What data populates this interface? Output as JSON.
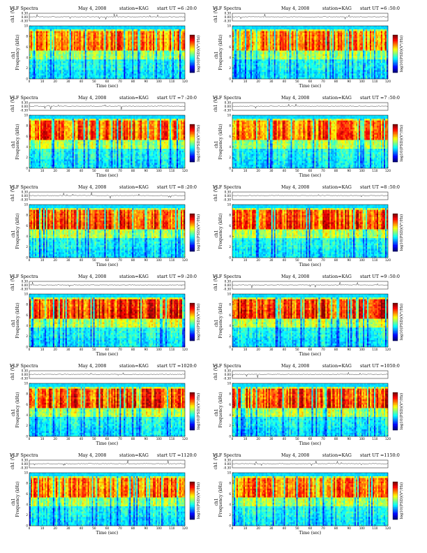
{
  "chart_data": [
    {
      "type": "heatmap",
      "title": "VLF Spectra",
      "date": "May 4, 2008",
      "station": "station=KAG",
      "start": "start  UT =6 :20:0",
      "xlabel": "Time (sec)",
      "ylabel": "Frequency (kHz)",
      "ylabel2": "ch1",
      "wave_label": "ch1 (V)",
      "cbar_label": "log10(PSD)(V²/Hz)",
      "xlim": [
        0,
        120
      ],
      "ylim": [
        0,
        10
      ],
      "wave_ylim": [
        -0.3,
        0.3
      ],
      "red_intensity": 0.55
    },
    {
      "type": "heatmap",
      "title": "VLF Spectra",
      "date": "May 4, 2008",
      "station": "station=KAG",
      "start": "start  UT =6 :50:0",
      "xlabel": "Time (sec)",
      "ylabel": "Frequency (kHz)",
      "ylabel2": "ch1",
      "wave_label": "ch1 (V)",
      "cbar_label": "log10(PSD)(V²/Hz)",
      "xlim": [
        0,
        120
      ],
      "ylim": [
        0,
        10
      ],
      "wave_ylim": [
        -0.3,
        0.3
      ],
      "red_intensity": 0.55
    },
    {
      "type": "heatmap",
      "title": "VLF Spectra",
      "date": "May 4, 2008",
      "station": "station=KAG",
      "start": "start  UT =7 :20:0",
      "xlabel": "Time (sec)",
      "ylabel": "Frequency (kHz)",
      "ylabel2": "ch1",
      "wave_label": "ch1 (V)",
      "cbar_label": "log10(PSD)(V²/Hz)",
      "xlim": [
        0,
        120
      ],
      "ylim": [
        0,
        10
      ],
      "wave_ylim": [
        -0.3,
        0.3
      ],
      "red_intensity": 0.6
    },
    {
      "type": "heatmap",
      "title": "VLF Spectra",
      "date": "May 4, 2008",
      "station": "station=KAG",
      "start": "start  UT =7 :50:0",
      "xlabel": "Time (sec)",
      "ylabel": "Frequency (kHz)",
      "ylabel2": "ch1",
      "wave_label": "ch1 (V)",
      "cbar_label": "log10(PSD)(V²/Hz)",
      "xlim": [
        0,
        120
      ],
      "ylim": [
        0,
        10
      ],
      "wave_ylim": [
        -0.3,
        0.3
      ],
      "red_intensity": 0.6
    },
    {
      "type": "heatmap",
      "title": "VLF Spectra",
      "date": "May 4, 2008",
      "station": "station=KAG",
      "start": "start  UT =8 :20:0",
      "xlabel": "Time (sec)",
      "ylabel": "Frequency (kHz)",
      "ylabel2": "ch1",
      "wave_label": "ch1 (V)",
      "cbar_label": "log10(PSD)(V²/Hz)",
      "xlim": [
        0,
        120
      ],
      "ylim": [
        0,
        10
      ],
      "wave_ylim": [
        -0.3,
        0.3
      ],
      "red_intensity": 0.75
    },
    {
      "type": "heatmap",
      "title": "VLF Spectra",
      "date": "May 4, 2008",
      "station": "station=KAG",
      "start": "start  UT =8 :50:0",
      "xlabel": "Time (sec)",
      "ylabel": "Frequency (kHz)",
      "ylabel2": "ch1",
      "wave_label": "ch1 (V)",
      "cbar_label": "log10(PSD)(V²/Hz)",
      "xlim": [
        0,
        120
      ],
      "ylim": [
        0,
        10
      ],
      "wave_ylim": [
        -0.3,
        0.3
      ],
      "red_intensity": 0.75
    },
    {
      "type": "heatmap",
      "title": "VLF Spectra",
      "date": "May 4, 2008",
      "station": "station=KAG",
      "start": "start  UT =9 :20:0",
      "xlabel": "Time (sec)",
      "ylabel": "Frequency (kHz)",
      "ylabel2": "ch1",
      "wave_label": "ch1 (V)",
      "cbar_label": "log10(PSD)(V²/Hz)",
      "xlim": [
        0,
        120
      ],
      "ylim": [
        0,
        10
      ],
      "wave_ylim": [
        -0.3,
        0.3
      ],
      "red_intensity": 0.85
    },
    {
      "type": "heatmap",
      "title": "VLF Spectra",
      "date": "May 4, 2008",
      "station": "station=KAG",
      "start": "start  UT =9 :50:0",
      "xlabel": "Time (sec)",
      "ylabel": "Frequency (kHz)",
      "ylabel2": "ch1",
      "wave_label": "ch1 (V)",
      "cbar_label": "log10(PSD)(V²/Hz)",
      "xlim": [
        0,
        120
      ],
      "ylim": [
        0,
        10
      ],
      "wave_ylim": [
        -0.3,
        0.3
      ],
      "red_intensity": 0.9
    },
    {
      "type": "heatmap",
      "title": "VLF Spectra",
      "date": "May 4, 2008",
      "station": "station=KAG",
      "start": "start  UT =1020:0",
      "xlabel": "Time (sec)",
      "ylabel": "Frequency (kHz)",
      "ylabel2": "ch1",
      "wave_label": "ch1 (V)",
      "cbar_label": "log10(PSD)(V²/Hz)",
      "xlim": [
        0,
        120
      ],
      "ylim": [
        0,
        10
      ],
      "wave_ylim": [
        -0.3,
        0.3
      ],
      "red_intensity": 0.85
    },
    {
      "type": "heatmap",
      "title": "VLF Spectra",
      "date": "May 4, 2008",
      "station": "station=KAG",
      "start": "start  UT =1050:0",
      "xlabel": "Time (sec)",
      "ylabel": "Frequency (kHz)",
      "ylabel2": "ch1",
      "wave_label": "ch1 (V)",
      "cbar_label": "log10(PSD)(V²/Hz)",
      "xlim": [
        0,
        120
      ],
      "ylim": [
        0,
        10
      ],
      "wave_ylim": [
        -0.3,
        0.3
      ],
      "red_intensity": 0.85
    },
    {
      "type": "heatmap",
      "title": "VLF Spectra",
      "date": "May 4, 2008",
      "station": "station=KAG",
      "start": "start  UT =1120:0",
      "xlabel": "Time (sec)",
      "ylabel": "Frequency (kHz)",
      "ylabel2": "ch1",
      "wave_label": "ch1 (V)",
      "cbar_label": "log10(PSD)(V²/Hz)",
      "xlim": [
        0,
        120
      ],
      "ylim": [
        0,
        10
      ],
      "wave_ylim": [
        -0.3,
        0.3
      ],
      "red_intensity": 0.55
    },
    {
      "type": "heatmap",
      "title": "VLF Spectra",
      "date": "May 4, 2008",
      "station": "station=KAG",
      "start": "start  UT =1150:0",
      "xlabel": "Time (sec)",
      "ylabel": "Frequency (kHz)",
      "ylabel2": "ch1",
      "wave_label": "ch1 (V)",
      "cbar_label": "log10(PSD)(V²/Hz)",
      "xlim": [
        0,
        120
      ],
      "ylim": [
        0,
        10
      ],
      "wave_ylim": [
        -0.3,
        0.3
      ],
      "red_intensity": 0.5
    }
  ],
  "shared": {
    "x_ticks": [
      0,
      10,
      20,
      30,
      40,
      50,
      60,
      70,
      80,
      90,
      100,
      110,
      120
    ],
    "y_ticks": [
      0,
      2,
      4,
      6,
      8,
      10
    ],
    "wave_ticks": [
      "0.30",
      "0.00",
      "-0.30"
    ]
  }
}
